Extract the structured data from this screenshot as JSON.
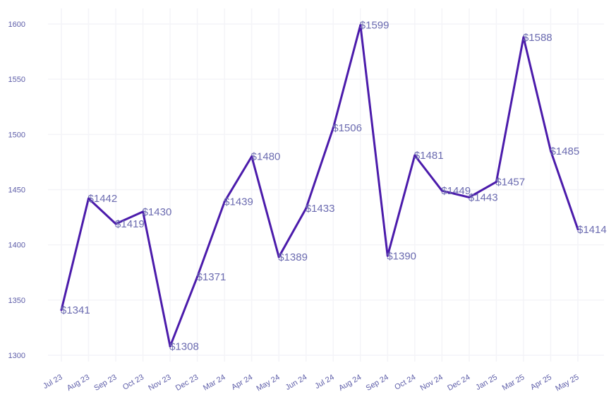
{
  "chart_data": {
    "type": "line",
    "title": "",
    "xlabel": "",
    "ylabel": "",
    "ylim": [
      1300,
      1600
    ],
    "yticks": [
      1300,
      1350,
      1400,
      1450,
      1500,
      1550,
      1600
    ],
    "grid": true,
    "legend": "none",
    "categories": [
      "Jul 23",
      "Aug 23",
      "Sep 23",
      "Oct 23",
      "Nov 23",
      "Dec 23",
      "Mar 24",
      "Apr 24",
      "May 24",
      "Jun 24",
      "Jul 24",
      "Aug 24",
      "Sep 24",
      "Oct 24",
      "Nov 24",
      "Dec 24",
      "Jan 25",
      "Mar 25",
      "Apr 25",
      "May 25"
    ],
    "series": [
      {
        "values": [
          1341,
          1442,
          1419,
          1430,
          1308,
          1371,
          1439,
          1480,
          1389,
          1433,
          1506,
          1599,
          1390,
          1481,
          1449,
          1443,
          1457,
          1588,
          1485,
          1414
        ],
        "labels": [
          "$1341",
          "$1442",
          "$1419",
          "$1430",
          "$1308",
          "$1371",
          "$1439",
          "$1480",
          "$1389",
          "$1433",
          "$1506",
          "$1599",
          "$1390",
          "$1481",
          "$1449",
          "$1443",
          "$1457",
          "$1588",
          "$1485",
          "$1414"
        ],
        "color": "#4b1bab"
      }
    ]
  }
}
